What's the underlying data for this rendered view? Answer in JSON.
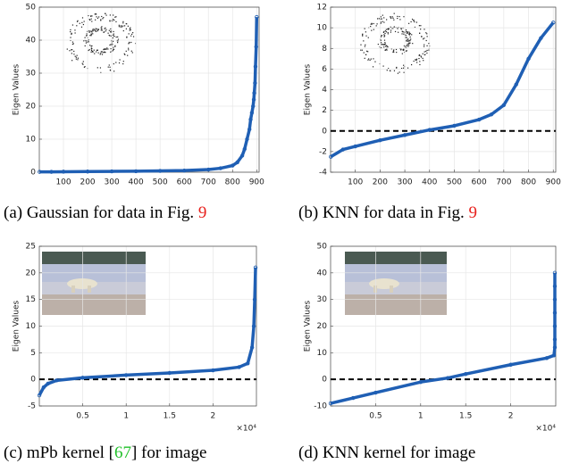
{
  "chart_data": [
    {
      "type": "scatter-line",
      "y_label": "Eigen Values",
      "color": "#1f5fb4",
      "grid": true,
      "caption": [
        {
          "text": "(a) Gaussian for data in Fig. "
        },
        {
          "text": "9",
          "color": "#e8201c"
        }
      ],
      "xlim": [
        0,
        910
      ],
      "xticks": [
        100,
        200,
        300,
        400,
        500,
        600,
        700,
        800,
        900
      ],
      "ylim": [
        0,
        50
      ],
      "yticks": [
        0,
        10,
        20,
        30,
        40,
        50
      ],
      "x": [
        1,
        50,
        100,
        200,
        300,
        400,
        500,
        600,
        700,
        750,
        800,
        820,
        840,
        850,
        860,
        870,
        875,
        880,
        885,
        888,
        890,
        893,
        895,
        898,
        900
      ],
      "values": [
        0.1,
        0.1,
        0.15,
        0.2,
        0.25,
        0.3,
        0.4,
        0.5,
        0.8,
        1.2,
        2,
        3,
        5,
        7,
        10,
        13,
        16,
        18,
        20,
        22,
        24,
        27,
        32,
        38,
        47
      ]
    },
    {
      "type": "scatter-line",
      "y_label": "Eigen Values",
      "color": "#1f5fb4",
      "grid": true,
      "hline": 0,
      "caption": [
        {
          "text": "(b) KNN for data in Fig. "
        },
        {
          "text": "9",
          "color": "#e8201c"
        }
      ],
      "xlim": [
        0,
        910
      ],
      "xticks": [
        100,
        200,
        300,
        400,
        500,
        600,
        700,
        800,
        900
      ],
      "ylim": [
        -4,
        12
      ],
      "yticks": [
        -4,
        -2,
        0,
        2,
        4,
        6,
        8,
        10,
        12
      ],
      "x": [
        1,
        50,
        100,
        200,
        300,
        400,
        500,
        600,
        650,
        700,
        750,
        800,
        850,
        900
      ],
      "values": [
        -2.5,
        -1.8,
        -1.5,
        -0.9,
        -0.4,
        0.1,
        0.5,
        1.1,
        1.6,
        2.5,
        4.5,
        7,
        9,
        10.5
      ]
    },
    {
      "type": "scatter-line",
      "y_label": "Eigen Values",
      "color": "#1f5fb4",
      "grid": true,
      "hline": 0,
      "caption": [
        {
          "text": "(c) mPb kernel ["
        },
        {
          "text": "67",
          "color": "#22c02a"
        },
        {
          "text": "] for image"
        }
      ],
      "x_exponent_label": "×10⁴",
      "xlim": [
        0,
        25000
      ],
      "xticks": [
        {
          "value": 5000,
          "label": "0.5"
        },
        {
          "value": 10000,
          "label": "1"
        },
        {
          "value": 15000,
          "label": "1.5"
        },
        {
          "value": 20000,
          "label": "2"
        }
      ],
      "ylim": [
        -5,
        25
      ],
      "yticks": [
        -5,
        0,
        5,
        10,
        15,
        20,
        25
      ],
      "x": [
        1,
        500,
        1000,
        2000,
        5000,
        10000,
        15000,
        20000,
        23000,
        24000,
        24500,
        24700,
        24800,
        24900
      ],
      "values": [
        -3,
        -1.5,
        -0.8,
        -0.2,
        0.3,
        0.8,
        1.2,
        1.7,
        2.3,
        3,
        6,
        10,
        15,
        21
      ]
    },
    {
      "type": "scatter-line",
      "y_label": "Eigen Values",
      "color": "#1f5fb4",
      "grid": true,
      "hline": 0,
      "caption": [
        {
          "text": "(d) KNN kernel for image"
        }
      ],
      "x_exponent_label": "×10⁴",
      "xlim": [
        0,
        25000
      ],
      "xticks": [
        {
          "value": 5000,
          "label": "0.5"
        },
        {
          "value": 10000,
          "label": "1"
        },
        {
          "value": 15000,
          "label": "1.5"
        },
        {
          "value": 20000,
          "label": "2"
        }
      ],
      "ylim": [
        -10,
        50
      ],
      "yticks": [
        -10,
        0,
        10,
        20,
        30,
        40,
        50
      ],
      "x": [
        1,
        2500,
        5000,
        10000,
        13000,
        15000,
        20000,
        24000,
        24800,
        24900,
        24900,
        24900,
        24900,
        24900,
        24900,
        24900
      ],
      "values": [
        -9,
        -7,
        -5,
        -1,
        0.5,
        2,
        5.5,
        8,
        9,
        12,
        15,
        20,
        25,
        30,
        35,
        40
      ]
    }
  ]
}
